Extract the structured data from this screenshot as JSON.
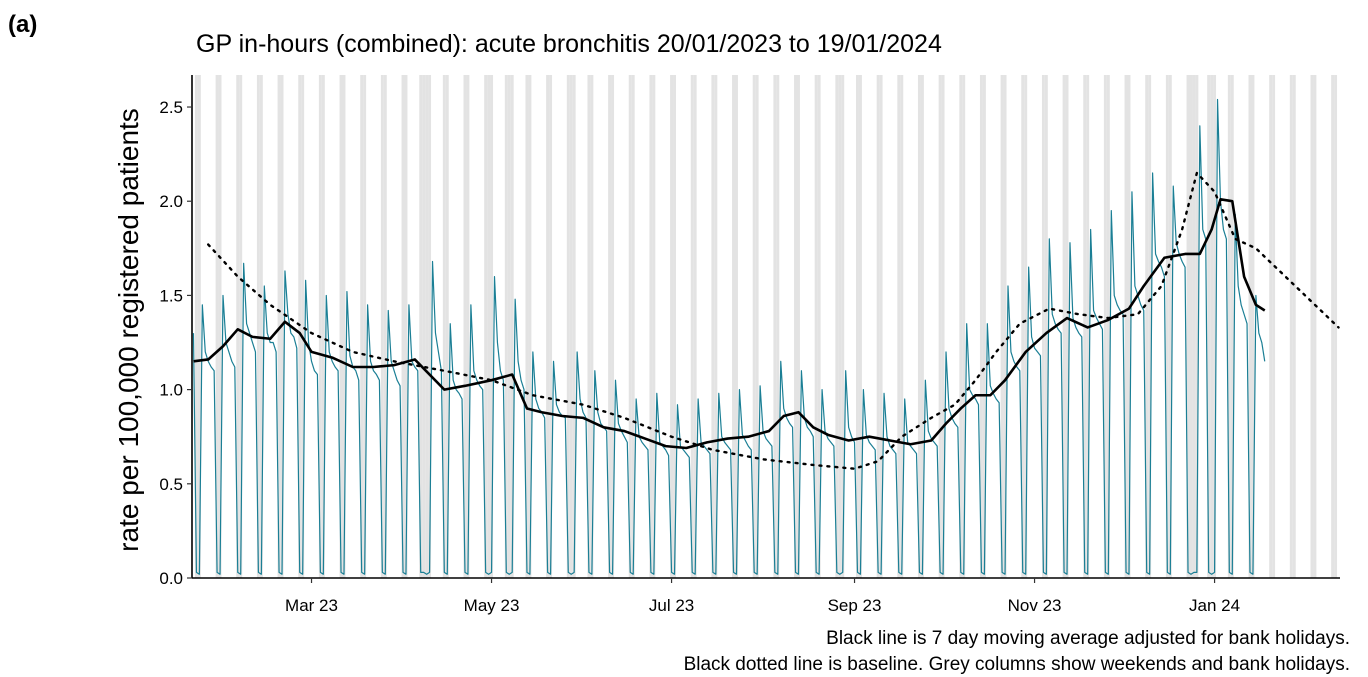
{
  "panel_label": "(a)",
  "chart_data": {
    "type": "line",
    "title": "GP in-hours (combined): acute bronchitis 20/01/2023 to 19/01/2024",
    "ylabel": "rate per 100,000 registered patients",
    "notes": [
      "Black line is 7 day moving average adjusted for bank holidays.",
      "Black dotted line is baseline. Grey columns show weekends and bank holidays."
    ],
    "xlim": [
      -0.5,
      388.5
    ],
    "xticks": [
      {
        "value": 40,
        "label": "Mar 23"
      },
      {
        "value": 101,
        "label": "May 23"
      },
      {
        "value": 162,
        "label": "Jul 23"
      },
      {
        "value": 224,
        "label": "Sep 23"
      },
      {
        "value": 285,
        "label": "Nov 23"
      },
      {
        "value": 346,
        "label": "Jan 24"
      }
    ],
    "ylim": [
      0,
      2.67
    ],
    "yticks": [
      {
        "value": 0,
        "label": "0.0"
      },
      0.5,
      {
        "value": 1,
        "label": "1.0"
      },
      1.5,
      {
        "value": 2,
        "label": "2.0"
      },
      2.5
    ],
    "grid": false,
    "shaded_days": [
      1,
      2,
      8,
      9,
      15,
      16,
      22,
      23,
      29,
      30,
      36,
      37,
      43,
      44,
      50,
      51,
      57,
      58,
      64,
      65,
      71,
      72,
      77,
      78,
      79,
      80,
      85,
      86,
      92,
      93,
      99,
      100,
      101,
      106,
      107,
      108,
      113,
      114,
      120,
      121,
      127,
      128,
      129,
      134,
      135,
      141,
      142,
      148,
      149,
      155,
      156,
      162,
      163,
      169,
      170,
      176,
      177,
      183,
      184,
      190,
      191,
      197,
      198,
      204,
      205,
      211,
      212,
      218,
      219,
      220,
      225,
      226,
      232,
      233,
      239,
      240,
      246,
      247,
      253,
      254,
      260,
      261,
      267,
      268,
      274,
      275,
      281,
      282,
      288,
      289,
      295,
      296,
      302,
      303,
      309,
      310,
      316,
      317,
      323,
      324,
      330,
      331,
      337,
      338,
      339,
      340,
      344,
      345,
      346,
      351,
      352,
      358,
      359,
      365,
      366,
      372,
      373,
      379,
      380,
      386,
      387
    ],
    "shade_color": "#e3e3e3",
    "series": [
      {
        "color": "#1b7f95",
        "style": "solid",
        "width": 1.2,
        "x": [
          0,
          1,
          2,
          3,
          4,
          5,
          6,
          7,
          8,
          9,
          10,
          11,
          12,
          13,
          14,
          15,
          16,
          17,
          18,
          19,
          20,
          21,
          22,
          23,
          24,
          25,
          26,
          27,
          28,
          29,
          30,
          31,
          32,
          33,
          34,
          35,
          36,
          37,
          38,
          39,
          40,
          41,
          42,
          43,
          44,
          45,
          46,
          47,
          48,
          49,
          50,
          51,
          52,
          53,
          54,
          55,
          56,
          57,
          58,
          59,
          60,
          61,
          62,
          63,
          64,
          65,
          66,
          67,
          68,
          69,
          70,
          71,
          72,
          73,
          74,
          75,
          76,
          77,
          78,
          79,
          80,
          81,
          82,
          83,
          84,
          85,
          86,
          87,
          88,
          89,
          90,
          91,
          92,
          93,
          94,
          95,
          96,
          97,
          98,
          99,
          100,
          101,
          102,
          103,
          104,
          105,
          106,
          107,
          108,
          109,
          110,
          111,
          112,
          113,
          114,
          115,
          116,
          117,
          118,
          119,
          120,
          121,
          122,
          123,
          124,
          125,
          126,
          127,
          128,
          129,
          130,
          131,
          132,
          133,
          134,
          135,
          136,
          137,
          138,
          139,
          140,
          141,
          142,
          143,
          144,
          145,
          146,
          147,
          148,
          149,
          150,
          151,
          152,
          153,
          154,
          155,
          156,
          157,
          158,
          159,
          160,
          161,
          162,
          163,
          164,
          165,
          166,
          167,
          168,
          169,
          170,
          171,
          172,
          173,
          174,
          175,
          176,
          177,
          178,
          179,
          180,
          181,
          182,
          183,
          184,
          185,
          186,
          187,
          188,
          189,
          190,
          191,
          192,
          193,
          194,
          195,
          196,
          197,
          198,
          199,
          200,
          201,
          202,
          203,
          204,
          205,
          206,
          207,
          208,
          209,
          210,
          211,
          212,
          213,
          214,
          215,
          216,
          217,
          218,
          219,
          220,
          221,
          222,
          223,
          224,
          225,
          226,
          227,
          228,
          229,
          230,
          231,
          232,
          233,
          234,
          235,
          236,
          237,
          238,
          239,
          240,
          241,
          242,
          243,
          244,
          245,
          246,
          247,
          248,
          249,
          250,
          251,
          252,
          253,
          254,
          255,
          256,
          257,
          258,
          259,
          260,
          261,
          262,
          263,
          264,
          265,
          266,
          267,
          268,
          269,
          270,
          271,
          272,
          273,
          274,
          275,
          276,
          277,
          278,
          279,
          280,
          281,
          282,
          283,
          284,
          285,
          286,
          287,
          288,
          289,
          290,
          291,
          292,
          293,
          294,
          295,
          296,
          297,
          298,
          299,
          300,
          301,
          302,
          303,
          304,
          305,
          306,
          307,
          308,
          309,
          310,
          311,
          312,
          313,
          314,
          315,
          316,
          317,
          318,
          319,
          320,
          321,
          322,
          323,
          324,
          325,
          326,
          327,
          328,
          329,
          330,
          331,
          332,
          333,
          334,
          335,
          336,
          337,
          338,
          339,
          340,
          341,
          342,
          343,
          344,
          345,
          346,
          347,
          348,
          349,
          350,
          351,
          352,
          353,
          354,
          355,
          356,
          357,
          358,
          359,
          360,
          361,
          362,
          363
        ],
        "values": [
          1.3,
          0.03,
          0.02,
          1.45,
          1.2,
          1.15,
          1.12,
          1.1,
          0.03,
          0.02,
          1.5,
          1.25,
          1.2,
          1.15,
          1.12,
          0.03,
          0.02,
          1.67,
          1.35,
          1.3,
          1.25,
          1.2,
          0.03,
          0.02,
          1.55,
          1.3,
          1.25,
          1.25,
          1.2,
          0.03,
          0.02,
          1.63,
          1.4,
          1.3,
          1.28,
          1.22,
          0.03,
          0.02,
          1.58,
          1.25,
          1.15,
          1.1,
          1.08,
          0.03,
          0.02,
          1.5,
          1.2,
          1.15,
          1.12,
          1.1,
          0.03,
          0.02,
          1.52,
          1.18,
          1.12,
          1.1,
          1.05,
          0.03,
          0.02,
          1.45,
          1.15,
          1.1,
          1.08,
          1.05,
          0.03,
          0.02,
          1.42,
          1.15,
          1.1,
          1.05,
          1.02,
          0.03,
          0.02,
          1.45,
          1.15,
          1.12,
          1.1,
          0.03,
          0.03,
          0.02,
          0.03,
          1.68,
          1.3,
          1.2,
          1.1,
          0.03,
          0.02,
          1.35,
          1.05,
          1.0,
          0.98,
          0.95,
          0.03,
          0.02,
          1.45,
          1.1,
          1.05,
          1.02,
          1.0,
          0.03,
          0.02,
          0.03,
          1.6,
          1.25,
          1.1,
          1.05,
          0.03,
          0.02,
          0.03,
          1.48,
          1.15,
          1.05,
          1.0,
          0.03,
          0.02,
          1.2,
          0.95,
          0.9,
          0.88,
          0.85,
          0.03,
          0.02,
          1.15,
          0.92,
          0.88,
          0.86,
          0.85,
          0.03,
          0.02,
          0.03,
          1.2,
          0.95,
          0.88,
          0.85,
          0.03,
          0.02,
          1.1,
          0.88,
          0.82,
          0.8,
          0.78,
          0.03,
          0.02,
          1.05,
          0.82,
          0.78,
          0.75,
          0.72,
          0.03,
          0.02,
          0.95,
          0.75,
          0.72,
          0.7,
          0.68,
          0.03,
          0.02,
          0.98,
          0.72,
          0.7,
          0.68,
          0.65,
          0.03,
          0.02,
          0.92,
          0.7,
          0.68,
          0.66,
          0.64,
          0.03,
          0.02,
          0.95,
          0.72,
          0.7,
          0.68,
          0.66,
          0.03,
          0.02,
          0.98,
          0.75,
          0.72,
          0.7,
          0.68,
          0.03,
          0.02,
          1.0,
          0.76,
          0.73,
          0.7,
          0.68,
          0.03,
          0.02,
          1.02,
          0.78,
          0.74,
          0.72,
          0.7,
          0.03,
          0.02,
          1.15,
          0.9,
          0.85,
          0.82,
          0.8,
          0.03,
          0.02,
          1.1,
          0.85,
          0.8,
          0.78,
          0.75,
          0.03,
          0.02,
          1.0,
          0.78,
          0.74,
          0.72,
          0.7,
          0.03,
          0.02,
          0.03,
          1.1,
          0.8,
          0.75,
          0.72,
          0.03,
          0.02,
          1.0,
          0.76,
          0.72,
          0.7,
          0.68,
          0.03,
          0.02,
          0.98,
          0.75,
          0.7,
          0.68,
          0.66,
          0.03,
          0.02,
          0.95,
          0.72,
          0.7,
          0.68,
          0.66,
          0.03,
          0.02,
          1.05,
          0.78,
          0.74,
          0.72,
          0.7,
          0.03,
          0.02,
          1.2,
          0.9,
          0.85,
          0.82,
          0.8,
          0.03,
          0.02,
          1.35,
          1.0,
          0.97,
          0.95,
          0.92,
          0.03,
          0.02,
          1.35,
          1.02,
          0.98,
          0.95,
          0.93,
          0.03,
          0.02,
          1.55,
          1.2,
          1.15,
          1.12,
          1.1,
          0.03,
          0.02,
          1.65,
          1.28,
          1.22,
          1.2,
          1.18,
          0.03,
          0.02,
          1.8,
          1.4,
          1.35,
          1.32,
          1.3,
          0.03,
          0.02,
          1.78,
          1.38,
          1.33,
          1.3,
          1.28,
          0.03,
          0.02,
          1.85,
          1.42,
          1.38,
          1.35,
          1.32,
          0.03,
          0.02,
          1.95,
          1.5,
          1.45,
          1.42,
          1.4,
          0.03,
          0.02,
          2.05,
          1.55,
          1.5,
          1.45,
          1.42,
          0.03,
          0.02,
          2.15,
          1.72,
          1.68,
          1.65,
          1.6,
          0.03,
          0.02,
          2.08,
          1.78,
          1.72,
          1.68,
          1.65,
          0.03,
          0.02,
          0.03,
          0.03,
          2.4,
          1.85,
          1.8,
          0.03,
          0.02,
          0.03,
          2.54,
          2.0,
          1.85,
          1.8,
          0.03,
          0.02,
          1.93,
          1.55,
          1.45,
          1.4,
          1.35,
          0.03,
          0.02,
          1.5,
          1.3,
          1.25,
          1.15
        ]
      },
      {
        "color": "#000000",
        "style": "solid",
        "width": 2.6,
        "x": [
          0,
          5,
          10,
          15,
          20,
          26,
          31,
          36,
          40,
          47,
          54,
          61,
          68,
          75,
          85,
          92,
          101,
          108,
          113,
          118,
          125,
          132,
          139,
          146,
          153,
          160,
          167,
          174,
          181,
          188,
          195,
          200,
          205,
          210,
          215,
          222,
          229,
          236,
          243,
          250,
          255,
          260,
          265,
          270,
          275,
          282,
          289,
          296,
          303,
          310,
          317,
          322,
          329,
          336,
          341,
          345,
          348,
          352,
          356,
          360,
          363
        ],
        "values": [
          1.15,
          1.16,
          1.23,
          1.32,
          1.28,
          1.27,
          1.36,
          1.3,
          1.2,
          1.17,
          1.12,
          1.12,
          1.13,
          1.16,
          1.0,
          1.02,
          1.05,
          1.08,
          0.9,
          0.88,
          0.86,
          0.85,
          0.8,
          0.78,
          0.74,
          0.7,
          0.69,
          0.72,
          0.74,
          0.75,
          0.78,
          0.86,
          0.88,
          0.8,
          0.76,
          0.73,
          0.75,
          0.73,
          0.71,
          0.73,
          0.82,
          0.9,
          0.97,
          0.97,
          1.05,
          1.2,
          1.3,
          1.38,
          1.33,
          1.37,
          1.43,
          1.55,
          1.7,
          1.72,
          1.72,
          1.85,
          2.01,
          2.0,
          1.6,
          1.45,
          1.42
        ]
      },
      {
        "color": "#000000",
        "style": "dotted",
        "width": 2.4,
        "x": [
          5,
          15,
          26,
          40,
          54,
          68,
          85,
          101,
          115,
          132,
          146,
          162,
          176,
          193,
          210,
          224,
          232,
          240,
          250,
          258,
          265,
          272,
          280,
          290,
          300,
          310,
          320,
          328,
          335,
          340,
          346,
          353,
          360,
          370,
          380,
          388
        ],
        "values": [
          1.77,
          1.6,
          1.45,
          1.3,
          1.2,
          1.15,
          1.1,
          1.05,
          0.97,
          0.92,
          0.85,
          0.75,
          0.68,
          0.63,
          0.6,
          0.58,
          0.62,
          0.75,
          0.85,
          0.92,
          1.05,
          1.2,
          1.35,
          1.43,
          1.4,
          1.38,
          1.4,
          1.55,
          1.85,
          2.15,
          2.05,
          1.8,
          1.75,
          1.6,
          1.45,
          1.33
        ]
      }
    ]
  }
}
